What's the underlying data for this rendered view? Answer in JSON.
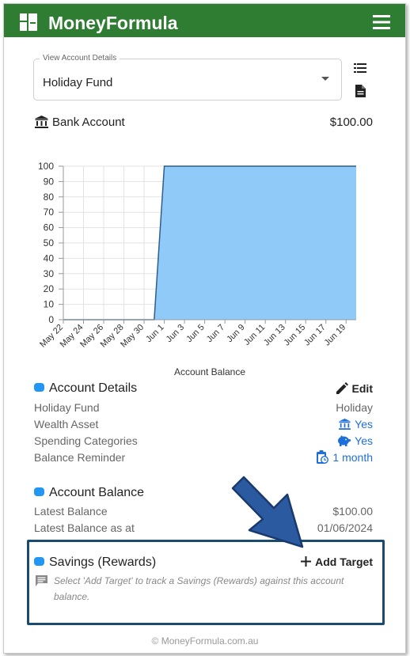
{
  "app": {
    "brand": "MoneyFormula",
    "footer": "© MoneyFormula.com.au"
  },
  "account_select": {
    "label": "View Account Details",
    "value": "Holiday Fund"
  },
  "bank_account": {
    "label": "Bank Account",
    "amount": "$100.00"
  },
  "chart_data": {
    "type": "area",
    "title": "",
    "xlabel": "Account Balance",
    "ylabel": "",
    "ylim": [
      0,
      100
    ],
    "yticks": [
      0,
      10,
      20,
      30,
      40,
      50,
      60,
      70,
      80,
      90,
      100
    ],
    "x_tick_labels": [
      "May 22",
      "May 24",
      "May 26",
      "May 28",
      "May 30",
      "Jun 1",
      "Jun 3",
      "Jun 5",
      "Jun 7",
      "Jun 9",
      "Jun 11",
      "Jun 13",
      "Jun 15",
      "Jun 17",
      "Jun 19"
    ],
    "grid": true,
    "fill_color": "#90caf9",
    "line_color": "#2f5e8c",
    "series": [
      {
        "x": [
          "May 22",
          "May 31",
          "Jun 1",
          "Jun 20"
        ],
        "values": [
          0,
          0,
          100,
          100
        ]
      }
    ]
  },
  "account_details": {
    "title": "Account Details",
    "edit_label": "Edit",
    "rows": [
      {
        "label": "Holiday Fund",
        "value": "Holiday"
      },
      {
        "label": "Wealth Asset",
        "value": "Yes"
      },
      {
        "label": "Spending Categories",
        "value": "Yes"
      },
      {
        "label": "Balance Reminder",
        "value": "1 month"
      }
    ]
  },
  "account_balance": {
    "title": "Account Balance",
    "rows": [
      {
        "label": "Latest Balance",
        "value": "$100.00"
      },
      {
        "label": "Latest Balance as at",
        "value": "01/06/2024"
      }
    ]
  },
  "savings": {
    "title": "Savings (Rewards)",
    "add_label": "Add Target",
    "note": "Select 'Add Target' to track a Savings (Rewards) against this account balance."
  },
  "colors": {
    "header": "#2e7d32",
    "accent": "#2196f3",
    "link": "#1e6fd9",
    "highlight_border": "#1b4b6e",
    "arrow": "#2c5aa0"
  },
  "icons": {
    "logo": "grid-logo-icon",
    "menu": "hamburger-menu-icon",
    "list": "list-view-icon",
    "document": "document-icon",
    "bank": "bank-icon",
    "edit": "pencil-icon",
    "wealth": "bank-icon",
    "spending": "piggy-bank-icon",
    "reminder": "clipboard-clock-icon",
    "add": "plus-icon",
    "note": "comment-icon"
  }
}
